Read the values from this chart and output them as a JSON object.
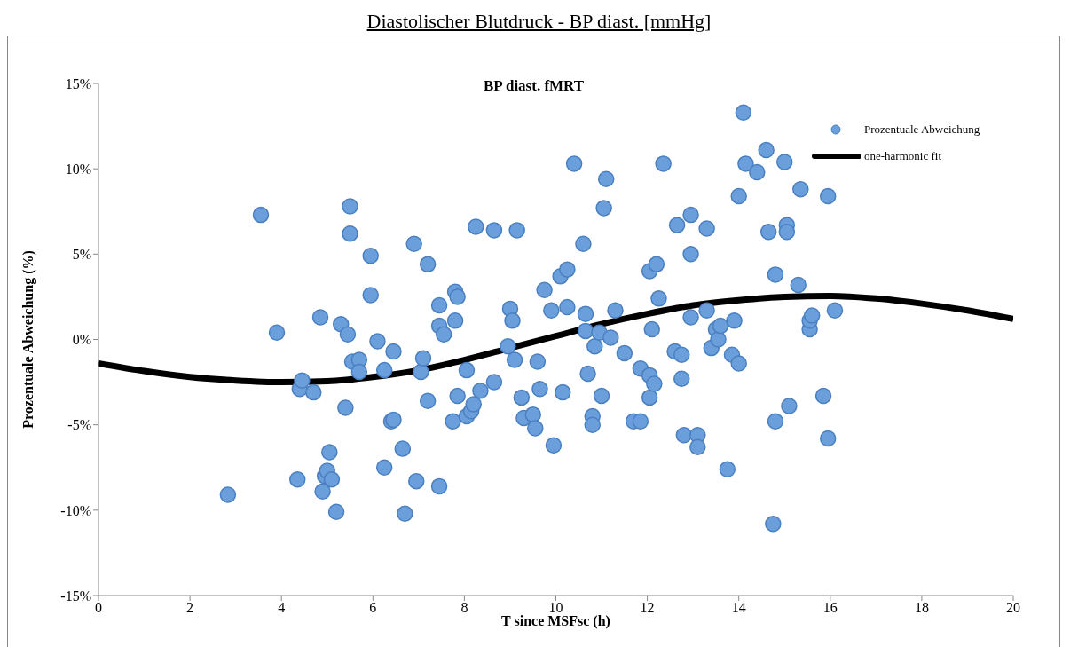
{
  "chart_data": {
    "type": "scatter",
    "title": "Diastolischer Blutdruck - BP diast. [mmHg]",
    "subtitle": "BP diast. fMRT",
    "xlabel": "T since MSFsc (h)",
    "ylabel": "Prozentuale Abweichung (%)",
    "xlim": [
      0,
      20
    ],
    "xticks": [
      0,
      2,
      4,
      6,
      8,
      10,
      12,
      14,
      16,
      18,
      20
    ],
    "ylim": [
      -15,
      15
    ],
    "yticks": [
      {
        "value": -15,
        "label": "-15%"
      },
      {
        "value": -10,
        "label": "-10%"
      },
      {
        "value": -5,
        "label": "-5%"
      },
      {
        "value": 0,
        "label": "0%"
      },
      {
        "value": 5,
        "label": "5%"
      },
      {
        "value": 10,
        "label": "10%"
      },
      {
        "value": 15,
        "label": "15%"
      }
    ],
    "grid": false,
    "legend": "top right",
    "series": [
      {
        "name": "Prozentuale Abweichung",
        "color": "#6a9fdc",
        "marker": "circle",
        "x": [
          2.83,
          3.55,
          3.9,
          4.35,
          4.4,
          4.45,
          4.7,
          4.85,
          4.9,
          4.95,
          5.0,
          5.05,
          5.1,
          5.2,
          5.3,
          5.4,
          5.45,
          5.5,
          5.5,
          5.55,
          5.7,
          5.7,
          5.95,
          5.95,
          6.1,
          6.25,
          6.25,
          6.4,
          6.45,
          6.45,
          6.65,
          6.7,
          6.9,
          6.95,
          7.05,
          7.1,
          7.2,
          7.2,
          7.45,
          7.45,
          7.45,
          7.55,
          7.75,
          7.8,
          7.85,
          7.8,
          7.85,
          8.05,
          8.05,
          8.15,
          8.2,
          8.25,
          8.35,
          8.65,
          8.65,
          8.95,
          9.0,
          9.05,
          9.1,
          9.15,
          9.25,
          9.3,
          9.5,
          9.55,
          9.6,
          9.65,
          9.75,
          9.9,
          9.95,
          10.1,
          10.15,
          10.25,
          10.25,
          10.4,
          10.6,
          10.65,
          10.65,
          10.7,
          10.8,
          10.8,
          10.85,
          10.95,
          11.0,
          11.05,
          11.1,
          11.2,
          11.3,
          11.5,
          11.7,
          11.85,
          11.85,
          12.05,
          12.05,
          12.05,
          12.1,
          12.15,
          12.2,
          12.25,
          12.35,
          12.6,
          12.65,
          12.75,
          12.75,
          12.8,
          12.95,
          12.95,
          12.95,
          13.1,
          13.1,
          13.3,
          13.3,
          13.4,
          13.5,
          13.55,
          13.6,
          13.75,
          13.85,
          13.9,
          14.0,
          14.0,
          14.1,
          14.15,
          14.4,
          14.6,
          14.65,
          14.75,
          14.8,
          14.8,
          15.0,
          15.05,
          15.05,
          15.1,
          15.3,
          15.35,
          15.55,
          15.55,
          15.6,
          15.85,
          15.95,
          15.95,
          16.1
        ],
        "values": [
          -9.1,
          7.3,
          0.4,
          -8.2,
          -2.9,
          -2.4,
          -3.1,
          1.3,
          -8.9,
          -8.0,
          -7.7,
          -6.6,
          -8.2,
          -10.1,
          0.9,
          -4.0,
          0.3,
          7.8,
          6.2,
          -1.3,
          -1.2,
          -1.9,
          2.6,
          4.9,
          -0.1,
          -1.8,
          -7.5,
          -4.8,
          -4.7,
          -0.7,
          -6.4,
          -10.2,
          5.6,
          -8.3,
          -1.9,
          -1.1,
          4.4,
          -3.6,
          0.8,
          2.0,
          -8.6,
          0.3,
          -4.8,
          2.8,
          2.5,
          1.1,
          -3.3,
          -1.8,
          -4.5,
          -4.2,
          -3.8,
          6.6,
          -3.0,
          6.4,
          -2.5,
          -0.4,
          1.8,
          1.1,
          -1.2,
          6.4,
          -3.4,
          -4.6,
          -4.4,
          -5.2,
          -1.3,
          -2.9,
          2.9,
          1.7,
          -6.2,
          3.7,
          -3.1,
          4.1,
          1.9,
          10.3,
          5.6,
          1.5,
          0.5,
          -2.0,
          -4.5,
          -5.0,
          -0.4,
          0.4,
          -3.3,
          7.7,
          9.4,
          0.1,
          1.7,
          -0.8,
          -4.8,
          -4.8,
          -1.7,
          -2.1,
          -3.4,
          4.0,
          0.6,
          -2.6,
          4.4,
          2.4,
          10.3,
          -0.7,
          6.7,
          -0.9,
          -2.3,
          -5.6,
          7.3,
          5.0,
          1.3,
          -5.6,
          -6.3,
          1.7,
          6.5,
          -0.5,
          0.6,
          0.0,
          0.8,
          -7.6,
          -0.9,
          1.1,
          -1.4,
          8.4,
          13.3,
          10.3,
          9.8,
          11.1,
          6.3,
          -10.8,
          3.8,
          -4.8,
          10.4,
          6.7,
          6.3,
          -3.9,
          3.2,
          8.8,
          0.6,
          1.1,
          1.4,
          -3.3,
          -5.8,
          8.4,
          1.7
        ]
      },
      {
        "name": "one-harmonic fit",
        "type": "line",
        "color": "#000000",
        "marker": "none",
        "line_style": "solid",
        "x": [
          0,
          1,
          2,
          3,
          4,
          5,
          6,
          7,
          8,
          9,
          10,
          11,
          12,
          13,
          14,
          15,
          16,
          17,
          18,
          19,
          20
        ],
        "values": [
          -1.4,
          -1.85,
          -2.2,
          -2.4,
          -2.5,
          -2.45,
          -2.2,
          -1.8,
          -1.2,
          -0.5,
          0.2,
          0.9,
          1.5,
          2.0,
          2.3,
          2.5,
          2.55,
          2.4,
          2.1,
          1.7,
          1.2
        ]
      }
    ]
  }
}
